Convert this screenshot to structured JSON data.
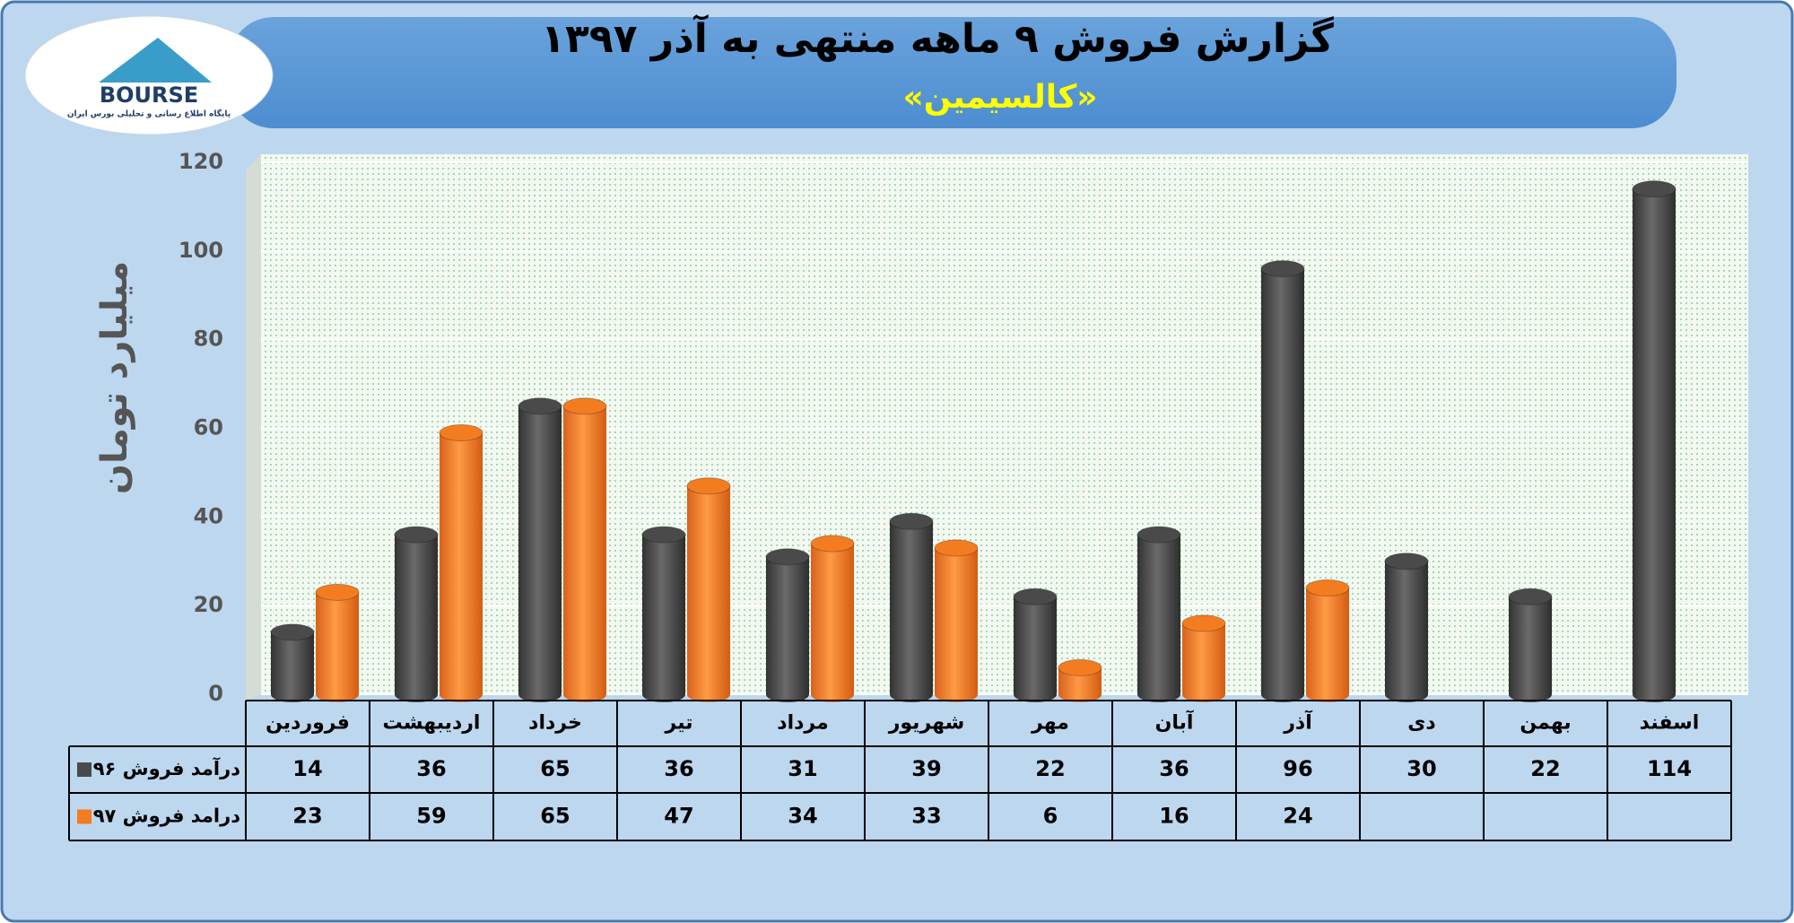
{
  "logo": {
    "brand": "BOURSE",
    "tagline": "پایگاه اطلاع رسانی و تحلیلی بورس ایران"
  },
  "chart_data": {
    "type": "bar",
    "title": "گزارش فروش ۹ ماهه منتهی به آذر ۱۳۹۷",
    "subtitle": "«کالسیمین»",
    "y_label": "میلیارد تومان",
    "categories": [
      "فروردین",
      "اردیبهشت",
      "خرداد",
      "تیر",
      "مرداد",
      "شهریور",
      "مهر",
      "آبان",
      "آذر",
      "دی",
      "بهمن",
      "اسفند"
    ],
    "series": [
      {
        "name": "درآمد فروش ۹۶",
        "color": "#4a4a4a",
        "values": [
          14,
          36,
          65,
          36,
          31,
          39,
          22,
          36,
          96,
          30,
          22,
          114
        ]
      },
      {
        "name": "درامد فروش ۹۷",
        "color": "#f47c20",
        "values": [
          23,
          59,
          65,
          47,
          34,
          33,
          6,
          16,
          24,
          null,
          null,
          null
        ]
      }
    ],
    "ylim": [
      0,
      120
    ],
    "yticks": [
      0,
      20,
      40,
      60,
      80,
      100,
      120
    ],
    "grid": true
  }
}
